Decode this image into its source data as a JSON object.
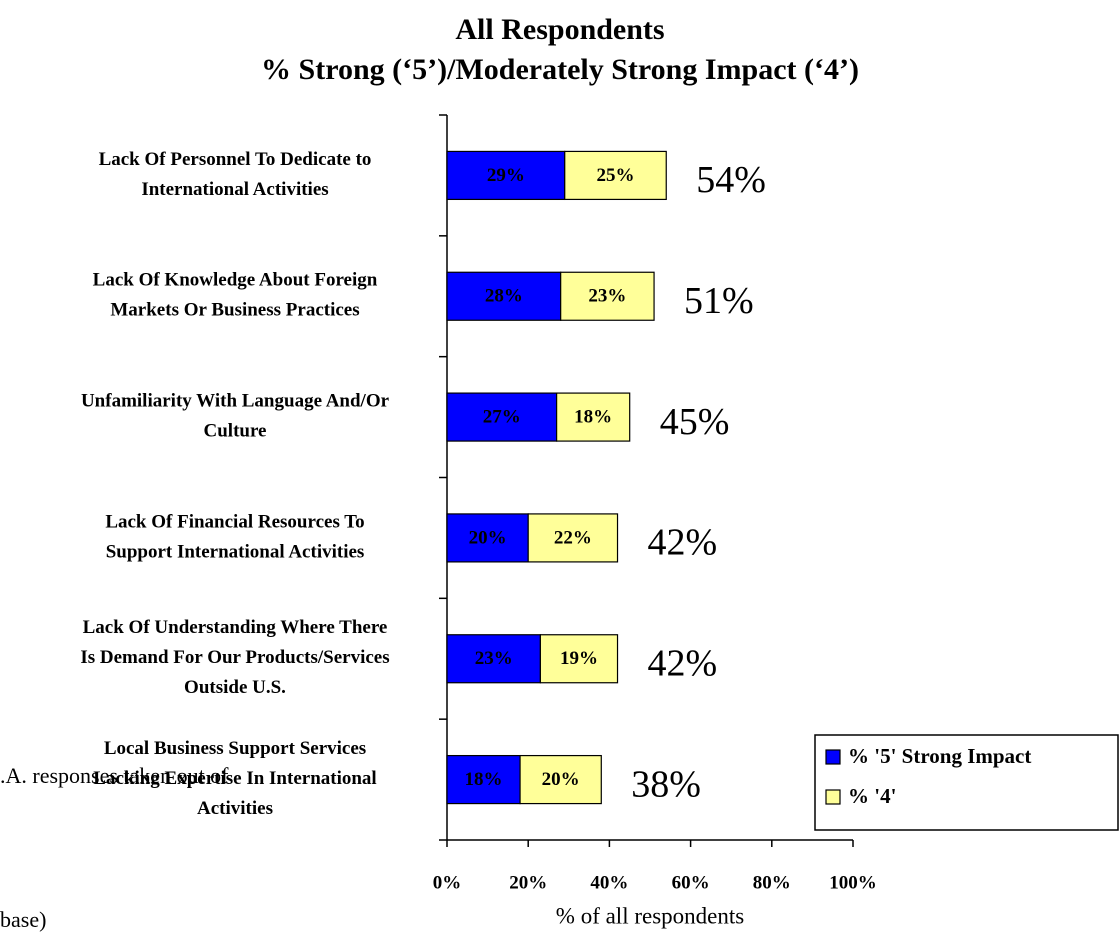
{
  "chart_data": {
    "type": "stacked_barh",
    "title": "All  Respondents",
    "subtitle": "% Strong (‘5’)/Moderately Strong Impact (‘4’)",
    "x_label": "% of all respondents",
    "categories": [
      [
        "Lack Of Personnel To Dedicate to",
        "International Activities"
      ],
      [
        "Lack Of Knowledge About Foreign",
        "Markets Or Business Practices"
      ],
      [
        "Unfamiliarity With Language And/Or",
        "Culture"
      ],
      [
        "Lack Of Financial Resources To",
        "Support International Activities"
      ],
      [
        "Lack Of Understanding Where There",
        "Is Demand For Our Products/Services",
        "Outside U.S."
      ],
      [
        "Local Business Support Services",
        "Lacking Expertise In International",
        "Activities"
      ]
    ],
    "series": [
      {
        "name": "% '5' Strong Impact",
        "color": "#0000ff",
        "values": [
          29,
          28,
          27,
          20,
          23,
          18
        ],
        "value_labels": [
          "29%",
          "28%",
          "27%",
          "20%",
          "23%",
          "18%"
        ]
      },
      {
        "name": "% '4'",
        "color": "#ffff99",
        "values": [
          25,
          23,
          18,
          22,
          19,
          20
        ],
        "value_labels": [
          "25%",
          "23%",
          "18%",
          "22%",
          "19%",
          "20%"
        ]
      }
    ],
    "totals": {
      "values": [
        54,
        51,
        45,
        42,
        42,
        38
      ],
      "value_labels": [
        "54%",
        "51%",
        "45%",
        "42%",
        "42%",
        "38%"
      ],
      "color": "#ff0000"
    },
    "xlim": [
      0,
      100
    ],
    "xticks": [
      {
        "value": 0,
        "label": "0%"
      },
      {
        "value": 20,
        "label": "20%"
      },
      {
        "value": 40,
        "label": "40%"
      },
      {
        "value": 60,
        "label": "60%"
      },
      {
        "value": 80,
        "label": "80%"
      },
      {
        "value": 100,
        "label": "100%"
      }
    ],
    "note": [
      ".A. responses taken out of",
      "base)"
    ],
    "legend": "lower right"
  }
}
